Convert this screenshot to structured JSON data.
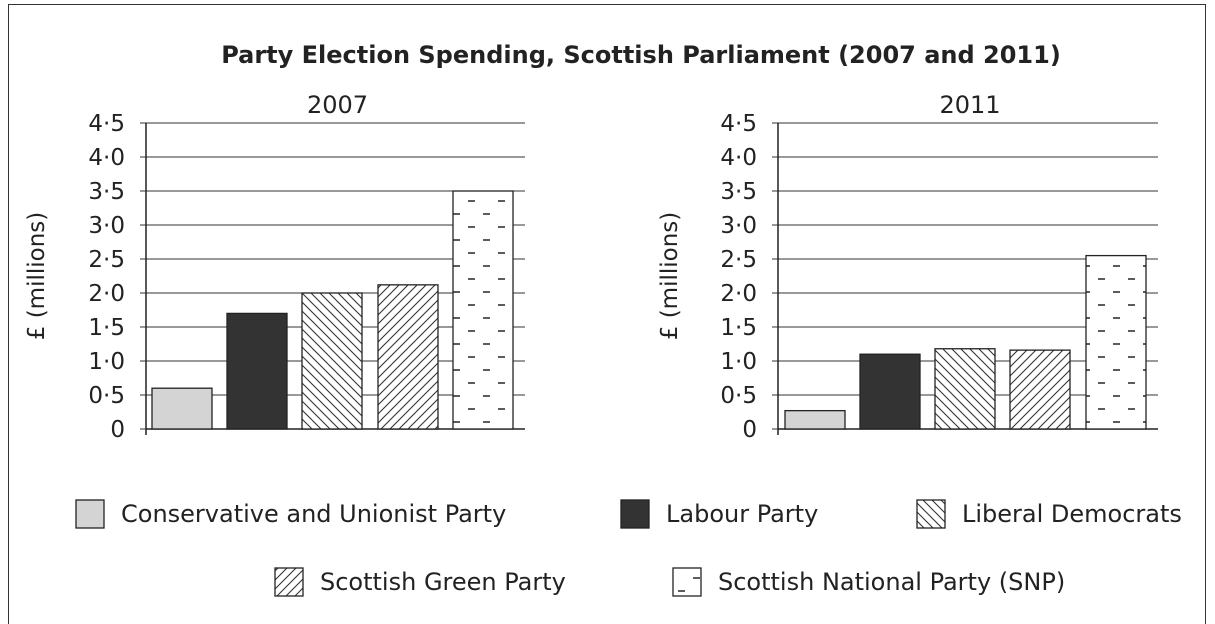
{
  "chart_data": {
    "type": "bar",
    "title": "Party Election Spending, Scottish Parliament (2007 and 2011)",
    "ylabel": "£ (millions)",
    "ylim": [
      0,
      4.5
    ],
    "yticks": [
      "0",
      "0·5",
      "1·0",
      "1·5",
      "2·0",
      "2·5",
      "3·0",
      "3·5",
      "4·0",
      "4·5"
    ],
    "grid": true,
    "legend_position": "bottom",
    "categories": [
      "Conservative and Unionist Party",
      "Labour Party",
      "Liberal Democrats",
      "Scottish Green Party",
      "Scottish National Party (SNP)"
    ],
    "series_styles": [
      {
        "name": "Conservative and Unionist Party",
        "fill": "#d4d4d4",
        "pattern": "solid"
      },
      {
        "name": "Labour Party",
        "fill": "#333333",
        "pattern": "solid"
      },
      {
        "name": "Liberal Democrats",
        "fill": "#ffffff",
        "pattern": "backslash-hatch"
      },
      {
        "name": "Scottish Green Party",
        "fill": "#ffffff",
        "pattern": "slash-hatch"
      },
      {
        "name": "Scottish National Party (SNP)",
        "fill": "#ffffff",
        "pattern": "dashes"
      }
    ],
    "panels": [
      {
        "subtitle": "2007",
        "values": [
          0.6,
          1.7,
          2.0,
          2.12,
          3.5
        ]
      },
      {
        "subtitle": "2011",
        "values": [
          0.27,
          1.1,
          1.18,
          1.16,
          2.55
        ]
      }
    ]
  }
}
